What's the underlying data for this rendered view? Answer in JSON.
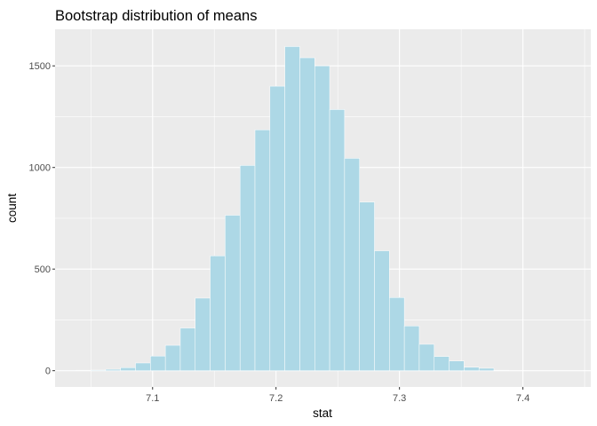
{
  "chart_data": {
    "type": "bar",
    "subtype": "histogram",
    "title": "Bootstrap distribution of means",
    "xlabel": "stat",
    "ylabel": "count",
    "xlim": [
      7.021,
      7.455
    ],
    "ylim": [
      -80,
      1680
    ],
    "x_ticks": [
      {
        "value": 7.1,
        "label": "7.1"
      },
      {
        "value": 7.2,
        "label": "7.2"
      },
      {
        "value": 7.3,
        "label": "7.3"
      },
      {
        "value": 7.4,
        "label": "7.4"
      }
    ],
    "y_ticks": [
      {
        "value": 0,
        "label": "0"
      },
      {
        "value": 500,
        "label": "500"
      },
      {
        "value": 1000,
        "label": "1000"
      },
      {
        "value": 1500,
        "label": "1500"
      }
    ],
    "bin_width": 0.0121,
    "bins": [
      {
        "x": 7.0317,
        "count": 1
      },
      {
        "x": 7.0438,
        "count": 2
      },
      {
        "x": 7.0559,
        "count": 3
      },
      {
        "x": 7.068,
        "count": 7
      },
      {
        "x": 7.0801,
        "count": 15
      },
      {
        "x": 7.0922,
        "count": 38
      },
      {
        "x": 7.1043,
        "count": 72
      },
      {
        "x": 7.1164,
        "count": 125
      },
      {
        "x": 7.1285,
        "count": 210
      },
      {
        "x": 7.1406,
        "count": 357
      },
      {
        "x": 7.1527,
        "count": 565
      },
      {
        "x": 7.1648,
        "count": 765
      },
      {
        "x": 7.1769,
        "count": 1010
      },
      {
        "x": 7.189,
        "count": 1185
      },
      {
        "x": 7.2011,
        "count": 1400
      },
      {
        "x": 7.2132,
        "count": 1595
      },
      {
        "x": 7.2253,
        "count": 1540
      },
      {
        "x": 7.2374,
        "count": 1500
      },
      {
        "x": 7.2495,
        "count": 1285
      },
      {
        "x": 7.2616,
        "count": 1045
      },
      {
        "x": 7.2737,
        "count": 830
      },
      {
        "x": 7.2858,
        "count": 590
      },
      {
        "x": 7.2979,
        "count": 360
      },
      {
        "x": 7.31,
        "count": 220
      },
      {
        "x": 7.3221,
        "count": 130
      },
      {
        "x": 7.3342,
        "count": 70
      },
      {
        "x": 7.3463,
        "count": 48
      },
      {
        "x": 7.3584,
        "count": 17
      },
      {
        "x": 7.3705,
        "count": 12
      },
      {
        "x": 7.3826,
        "count": 2
      }
    ],
    "grid": true,
    "colors": {
      "fill": "#add8e6",
      "bar_stroke": "#ffffff",
      "panel_bg": "#ebebeb",
      "grid_major": "#ffffff",
      "grid_minor": "#f5f5f5"
    }
  }
}
